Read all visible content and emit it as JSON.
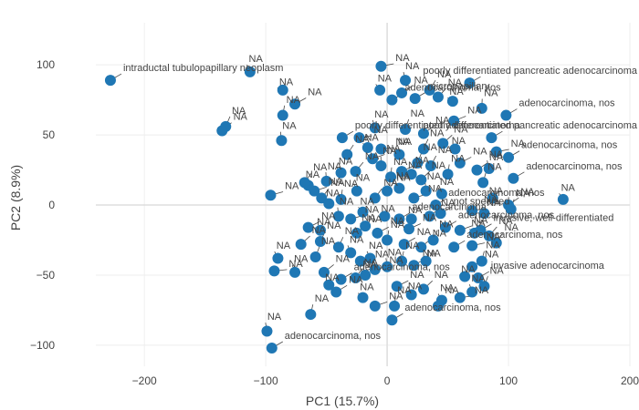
{
  "chart_data": {
    "type": "scatter",
    "xlabel": "PC1 (15.7%)",
    "ylabel": "PC2 (8.9%)",
    "xlim": [
      -240,
      200
    ],
    "ylim": [
      -115,
      130
    ],
    "xticks": [
      -200,
      -100,
      0,
      100,
      200
    ],
    "yticks": [
      -100,
      -50,
      0,
      50,
      100
    ],
    "grid": true,
    "marker_color": "#1f77b4",
    "points": [
      {
        "x": -228,
        "y": 89,
        "label": "intraductal tubulopapillary neoplasm"
      },
      {
        "x": -113,
        "y": 95,
        "label": "NA"
      },
      {
        "x": -133,
        "y": 56,
        "label": "NA"
      },
      {
        "x": -136,
        "y": 53,
        "label": "NA"
      },
      {
        "x": -86,
        "y": 82,
        "label": "NA"
      },
      {
        "x": -76,
        "y": 72,
        "label": "NA"
      },
      {
        "x": -86,
        "y": 64,
        "label": "NA"
      },
      {
        "x": -87,
        "y": 46,
        "label": "NA"
      },
      {
        "x": -96,
        "y": 7,
        "label": "NA"
      },
      {
        "x": -65,
        "y": 14,
        "label": "NA"
      },
      {
        "x": -68,
        "y": 16,
        "label": "NA"
      },
      {
        "x": -54,
        "y": 5,
        "label": "NA"
      },
      {
        "x": -48,
        "y": 1,
        "label": "NA"
      },
      {
        "x": -60,
        "y": 10,
        "label": "NA"
      },
      {
        "x": -50,
        "y": 17,
        "label": "NA"
      },
      {
        "x": -38,
        "y": 4,
        "label": "NA"
      },
      {
        "x": -65,
        "y": -16,
        "label": "NA"
      },
      {
        "x": -55,
        "y": -18,
        "label": "NA"
      },
      {
        "x": -71,
        "y": -28,
        "label": "NA"
      },
      {
        "x": -55,
        "y": -26,
        "label": "NA"
      },
      {
        "x": -90,
        "y": -38,
        "label": "NA"
      },
      {
        "x": -93,
        "y": -47,
        "label": "NA"
      },
      {
        "x": -76,
        "y": -48,
        "label": "NA"
      },
      {
        "x": -59,
        "y": -37,
        "label": "NA"
      },
      {
        "x": -52,
        "y": -48,
        "label": "NA"
      },
      {
        "x": -48,
        "y": -57,
        "label": "NA"
      },
      {
        "x": -42,
        "y": -62,
        "label": "NA"
      },
      {
        "x": -63,
        "y": -78,
        "label": "NA"
      },
      {
        "x": -99,
        "y": -90,
        "label": "NA"
      },
      {
        "x": -95,
        "y": -102,
        "label": "adenocarcinoma, nos"
      },
      {
        "x": -38,
        "y": 23,
        "label": "NA"
      },
      {
        "x": -33,
        "y": 36,
        "label": "NA"
      },
      {
        "x": -26,
        "y": 24,
        "label": "NA"
      },
      {
        "x": -16,
        "y": 41,
        "label": "NA"
      },
      {
        "x": -12,
        "y": 33,
        "label": "NA"
      },
      {
        "x": -5,
        "y": 28,
        "label": "NA"
      },
      {
        "x": 3,
        "y": 20,
        "label": "NA"
      },
      {
        "x": 12,
        "y": 24,
        "label": "NA"
      },
      {
        "x": 20,
        "y": 22,
        "label": "NA"
      },
      {
        "x": 28,
        "y": 18,
        "label": "NA"
      },
      {
        "x": 36,
        "y": 28,
        "label": "NA"
      },
      {
        "x": -37,
        "y": 48,
        "label": "poorly differentiated adenocarcinoma"
      },
      {
        "x": -23,
        "y": 48,
        "label": "NA"
      },
      {
        "x": -10,
        "y": 55,
        "label": "NA"
      },
      {
        "x": 15,
        "y": 54,
        "label": "NA"
      },
      {
        "x": 30,
        "y": 51,
        "label": "NA"
      },
      {
        "x": 4,
        "y": 75,
        "label": "adenocarcinoma, nos"
      },
      {
        "x": 12,
        "y": 80,
        "label": "NA"
      },
      {
        "x": 23,
        "y": 76,
        "label": "micropapillary"
      },
      {
        "x": 15,
        "y": 89,
        "label": "NA"
      },
      {
        "x": -5,
        "y": 99,
        "label": "NA"
      },
      {
        "x": -6,
        "y": 82,
        "label": "NA"
      },
      {
        "x": 35,
        "y": 82,
        "label": "NA"
      },
      {
        "x": 42,
        "y": 77,
        "label": "NA"
      },
      {
        "x": 54,
        "y": 74,
        "label": "NA"
      },
      {
        "x": 55,
        "y": 60,
        "label": "NA"
      },
      {
        "x": 68,
        "y": 87,
        "label": "poorly differentiated pancreatic adenocarcinoma"
      },
      {
        "x": 78,
        "y": 69,
        "label": "NA"
      },
      {
        "x": 98,
        "y": 64,
        "label": "adenocarcinoma, nos"
      },
      {
        "x": 86,
        "y": 48,
        "label": "poorly differentiated pancreatic adenocarcinoma"
      },
      {
        "x": 100,
        "y": 34,
        "label": "adenocarcinoma, nos"
      },
      {
        "x": 104,
        "y": 19,
        "label": "adenocarcinoma, nos"
      },
      {
        "x": 145,
        "y": 4,
        "label": "NA"
      },
      {
        "x": 90,
        "y": 38,
        "label": "NA"
      },
      {
        "x": 84,
        "y": 26,
        "label": "NA"
      },
      {
        "x": 79,
        "y": 16,
        "label": "NA"
      },
      {
        "x": 74,
        "y": 25,
        "label": "NA"
      },
      {
        "x": 87,
        "y": 5,
        "label": "NA"
      },
      {
        "x": 100,
        "y": 0,
        "label": "NA"
      },
      {
        "x": 102,
        "y": -3,
        "label": "NA"
      },
      {
        "x": 80,
        "y": -6,
        "label": "NA"
      },
      {
        "x": 70,
        "y": -4,
        "label": "NA"
      },
      {
        "x": 45,
        "y": 8,
        "label": "NA"
      },
      {
        "x": 40,
        "y": 0,
        "label": "adenocarcinoma, nos"
      },
      {
        "x": 44,
        "y": -6,
        "label": "not specified"
      },
      {
        "x": 20,
        "y": -10,
        "label": "NA"
      },
      {
        "x": 18,
        "y": -17,
        "label": "NA"
      },
      {
        "x": 10,
        "y": -10,
        "label": "adenocarcinoma"
      },
      {
        "x": 48,
        "y": -16,
        "label": "adenocarcinoma, nos"
      },
      {
        "x": 60,
        "y": -18,
        "label": "NA"
      },
      {
        "x": 72,
        "y": -20,
        "label": "NA"
      },
      {
        "x": 84,
        "y": -22,
        "label": "NA"
      },
      {
        "x": 90,
        "y": -27,
        "label": "NA"
      },
      {
        "x": 77,
        "y": -18,
        "label": "invasive, well-differentiated"
      },
      {
        "x": 70,
        "y": -29,
        "label": "NA"
      },
      {
        "x": 55,
        "y": -30,
        "label": "adenocarcinoma, nos"
      },
      {
        "x": 78,
        "y": -40,
        "label": "NA"
      },
      {
        "x": 70,
        "y": -44,
        "label": "NA"
      },
      {
        "x": 64,
        "y": -51,
        "label": "NA"
      },
      {
        "x": 75,
        "y": -52,
        "label": "invasive adenocarcinoma"
      },
      {
        "x": 80,
        "y": -58,
        "label": "NA"
      },
      {
        "x": 70,
        "y": -62,
        "label": "NA"
      },
      {
        "x": 60,
        "y": -66,
        "label": "NA"
      },
      {
        "x": 45,
        "y": -68,
        "label": "NA"
      },
      {
        "x": 42,
        "y": -72,
        "label": "NA"
      },
      {
        "x": 30,
        "y": -60,
        "label": "NA"
      },
      {
        "x": 20,
        "y": -64,
        "label": "NA"
      },
      {
        "x": 8,
        "y": -58,
        "label": "NA"
      },
      {
        "x": 6,
        "y": -72,
        "label": "NA"
      },
      {
        "x": 4,
        "y": -82,
        "label": "adenocarcinoma, nos"
      },
      {
        "x": -10,
        "y": -72,
        "label": "NA"
      },
      {
        "x": -20,
        "y": -66,
        "label": "NA"
      },
      {
        "x": -38,
        "y": -53,
        "label": "adenocarcinoma, nos"
      },
      {
        "x": -26,
        "y": -52,
        "label": "NA"
      },
      {
        "x": -18,
        "y": -50,
        "label": "NA"
      },
      {
        "x": -10,
        "y": -46,
        "label": "NA"
      },
      {
        "x": 0,
        "y": -44,
        "label": "NA"
      },
      {
        "x": 12,
        "y": -40,
        "label": "NA"
      },
      {
        "x": 22,
        "y": -43,
        "label": "NA"
      },
      {
        "x": 32,
        "y": -40,
        "label": "NA"
      },
      {
        "x": 28,
        "y": -30,
        "label": "NA"
      },
      {
        "x": 38,
        "y": -25,
        "label": "NA"
      },
      {
        "x": -30,
        "y": -34,
        "label": "NA"
      },
      {
        "x": -22,
        "y": -40,
        "label": "NA"
      },
      {
        "x": -14,
        "y": -38,
        "label": "NA"
      },
      {
        "x": -40,
        "y": -30,
        "label": "NA"
      },
      {
        "x": -25,
        "y": -20,
        "label": "NA"
      },
      {
        "x": -18,
        "y": -15,
        "label": "NA"
      },
      {
        "x": -8,
        "y": -20,
        "label": "NA"
      },
      {
        "x": 0,
        "y": -25,
        "label": "NA"
      },
      {
        "x": -40,
        "y": -8,
        "label": "NA"
      },
      {
        "x": -30,
        "y": -10,
        "label": "NA"
      },
      {
        "x": -20,
        "y": -5,
        "label": "NA"
      },
      {
        "x": -10,
        "y": 5,
        "label": "NA"
      },
      {
        "x": 0,
        "y": 10,
        "label": "NA"
      },
      {
        "x": 10,
        "y": 12,
        "label": "NA"
      },
      {
        "x": 22,
        "y": 5,
        "label": "NA"
      },
      {
        "x": 32,
        "y": 10,
        "label": "NA"
      },
      {
        "x": 50,
        "y": 22,
        "label": "NA"
      },
      {
        "x": 60,
        "y": 30,
        "label": "NA"
      },
      {
        "x": 56,
        "y": 40,
        "label": "NA"
      },
      {
        "x": 46,
        "y": 44,
        "label": "NA"
      },
      {
        "x": 30,
        "y": 40,
        "label": "NA"
      },
      {
        "x": 10,
        "y": 36,
        "label": "NA"
      },
      {
        "x": -5,
        "y": 40,
        "label": "NA"
      },
      {
        "x": -25,
        "y": 10,
        "label": "NA"
      },
      {
        "x": 25,
        "y": 30,
        "label": "NA"
      },
      {
        "x": 35,
        "y": -8,
        "label": "NA"
      },
      {
        "x": -2,
        "y": -8,
        "label": "NA"
      },
      {
        "x": 14,
        "y": -28,
        "label": "NA"
      }
    ]
  }
}
